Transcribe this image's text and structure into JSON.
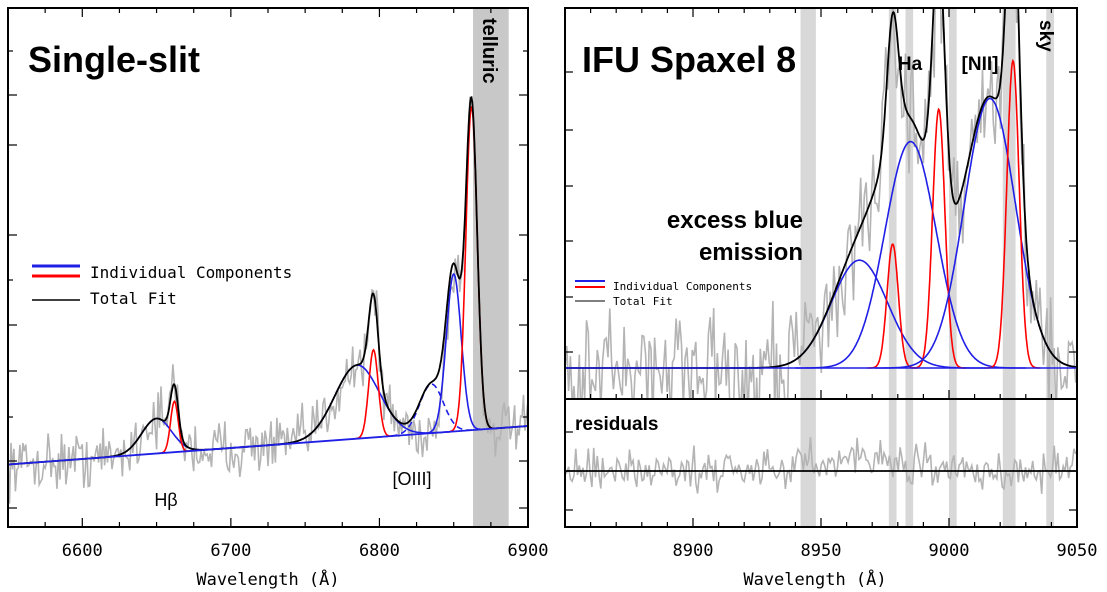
{
  "chart_data": [
    {
      "type": "line",
      "title": "Single-slit",
      "xlabel": "Wavelength (Å)",
      "ylabel": "",
      "xlim": [
        6550,
        6900
      ],
      "xticks": [
        "6600",
        "6700",
        "6800",
        "6900"
      ],
      "annotations": {
        "hb": "Hβ",
        "oiii": "[OIII]",
        "telluric": "telluric"
      },
      "shaded_regions": [
        {
          "label": "telluric",
          "x": [
            6863,
            6887
          ]
        }
      ],
      "legend": {
        "position": "middle-left",
        "entries": [
          "Individual Components",
          "Total Fit"
        ]
      },
      "continuum": {
        "x": [
          6550,
          6900
        ],
        "y": [
          -0.02,
          0.2
        ]
      },
      "components": [
        {
          "color": "#1f1fe6",
          "center": 6650,
          "amp": 0.2,
          "sigma": 10
        },
        {
          "color": "#ff0000",
          "center": 6662,
          "amp": 0.29,
          "sigma": 2.6
        },
        {
          "color": "#1f1fe6",
          "center": 6785,
          "amp": 0.42,
          "sigma": 15
        },
        {
          "color": "#ff0000",
          "center": 6796,
          "amp": 0.5,
          "sigma": 3.2
        },
        {
          "color": "#1f1fe6",
          "center": 6835,
          "amp": 0.28,
          "sigma": 8,
          "dashed": true
        },
        {
          "color": "#1f1fe6",
          "center": 6850,
          "amp": 0.9,
          "sigma": 5
        },
        {
          "color": "#ff0000",
          "center": 6862,
          "amp": 1.85,
          "sigma": 3.8
        }
      ],
      "total_fit": {
        "color": "#000000"
      },
      "observed": {
        "color": "#b4b4b4"
      }
    },
    {
      "type": "line",
      "title": "IFU Spaxel 8",
      "xlabel": "Wavelength (Å)",
      "ylabel": "",
      "xlim": [
        8850,
        9050
      ],
      "xticks": [
        "8900",
        "8950",
        "9000",
        "9050"
      ],
      "annotations": {
        "ha": "Ha",
        "nii": "[NII]",
        "sky": "sky",
        "excess": [
          "excess blue",
          "emission"
        ],
        "residuals": "residuals"
      },
      "shaded_regions": [
        {
          "label": "",
          "x": [
            8942,
            8948
          ]
        },
        {
          "label": "",
          "x": [
            8976.5,
            8979.5
          ]
        },
        {
          "label": "",
          "x": [
            8983,
            8986
          ]
        },
        {
          "label": "",
          "x": [
            9000,
            9003
          ]
        },
        {
          "label": "",
          "x": [
            9021,
            9026
          ]
        },
        {
          "label": "sky",
          "x": [
            9038,
            9041
          ]
        }
      ],
      "legend": {
        "position": "middle-left",
        "entries": [
          "Individual Components",
          "Total Fit"
        ]
      },
      "continuum": {
        "x": [
          8850,
          9050
        ],
        "y": [
          0,
          0
        ]
      },
      "components": [
        {
          "color": "#1f1fe6",
          "center": 8965,
          "amp": 0.2,
          "sigma": 11
        },
        {
          "color": "#ff0000",
          "center": 8978,
          "amp": 0.23,
          "sigma": 2.2
        },
        {
          "color": "#1f1fe6",
          "center": 8985,
          "amp": 0.42,
          "sigma": 10
        },
        {
          "color": "#ff0000",
          "center": 8996,
          "amp": 0.48,
          "sigma": 2.4
        },
        {
          "color": "#1f1fe6",
          "center": 9016,
          "amp": 0.5,
          "sigma": 10
        },
        {
          "color": "#ff0000",
          "center": 9025,
          "amp": 0.57,
          "sigma": 2.4
        }
      ],
      "total_fit": {
        "color": "#000000"
      },
      "observed": {
        "color": "#b4b4b4"
      },
      "residual_baseline": 0
    }
  ]
}
